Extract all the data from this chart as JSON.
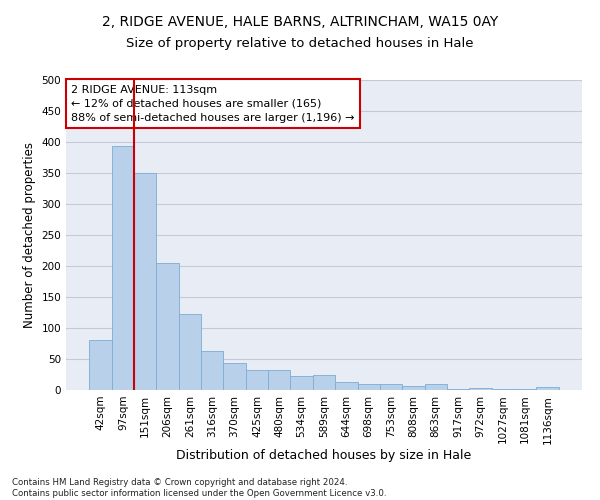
{
  "title_line1": "2, RIDGE AVENUE, HALE BARNS, ALTRINCHAM, WA15 0AY",
  "title_line2": "Size of property relative to detached houses in Hale",
  "xlabel": "Distribution of detached houses by size in Hale",
  "ylabel": "Number of detached properties",
  "categories": [
    "42sqm",
    "97sqm",
    "151sqm",
    "206sqm",
    "261sqm",
    "316sqm",
    "370sqm",
    "425sqm",
    "480sqm",
    "534sqm",
    "589sqm",
    "644sqm",
    "698sqm",
    "753sqm",
    "808sqm",
    "863sqm",
    "917sqm",
    "972sqm",
    "1027sqm",
    "1081sqm",
    "1136sqm"
  ],
  "values": [
    80,
    393,
    350,
    205,
    122,
    63,
    44,
    32,
    32,
    22,
    24,
    13,
    9,
    10,
    7,
    10,
    1,
    4,
    2,
    1,
    5
  ],
  "bar_color": "#b8d0ea",
  "bar_edge_color": "#7aadd4",
  "vline_x_idx": 1.5,
  "vline_color": "#cc0000",
  "annotation_line1": "2 RIDGE AVENUE: 113sqm",
  "annotation_line2": "← 12% of detached houses are smaller (165)",
  "annotation_line3": "88% of semi-detached houses are larger (1,196) →",
  "annotation_box_color": "#ffffff",
  "annotation_border_color": "#cc0000",
  "annotation_fontsize": 8,
  "ylim": [
    0,
    500
  ],
  "yticks": [
    0,
    50,
    100,
    150,
    200,
    250,
    300,
    350,
    400,
    450,
    500
  ],
  "grid_color": "#c8c8d8",
  "bg_color": "#e8ecf5",
  "footnote": "Contains HM Land Registry data © Crown copyright and database right 2024.\nContains public sector information licensed under the Open Government Licence v3.0.",
  "title_fontsize": 10,
  "subtitle_fontsize": 9.5,
  "xlabel_fontsize": 9,
  "ylabel_fontsize": 8.5,
  "tick_fontsize": 7.5
}
